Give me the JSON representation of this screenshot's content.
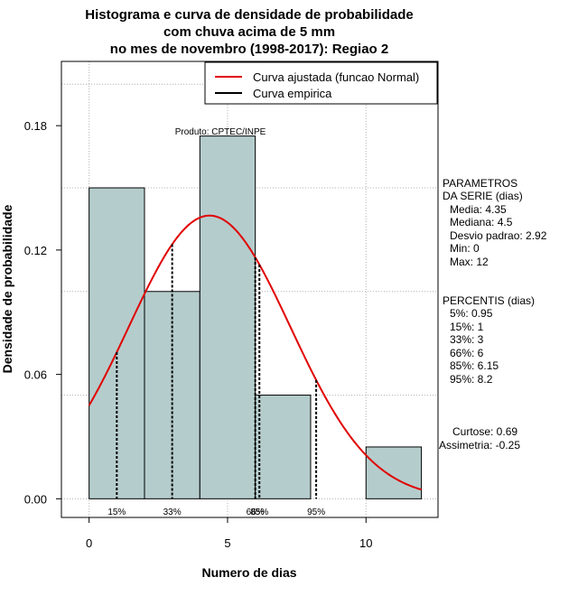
{
  "chart_data": {
    "type": "histogram",
    "title_lines": [
      "Histograma e curva de densidade de probabilidade",
      "com chuva acima de 5 mm",
      "no mes de novembro (1998-2017): Regiao 2"
    ],
    "xlabel": "Numero de dias",
    "ylabel": "Densidade de probabilidade",
    "xlim": [
      -1,
      12.6
    ],
    "ylim": [
      -0.009,
      0.211
    ],
    "xticks": [
      0,
      5,
      10
    ],
    "yticks": [
      0.0,
      0.06,
      0.12,
      0.18
    ],
    "ytick_labels": [
      "0.00",
      "0.06",
      "0.12",
      "0.18"
    ],
    "bins": [
      {
        "x0": 0,
        "x1": 2,
        "density": 0.15
      },
      {
        "x0": 2,
        "x1": 4,
        "density": 0.1
      },
      {
        "x0": 4,
        "x1": 6,
        "density": 0.175
      },
      {
        "x0": 6,
        "x1": 8,
        "density": 0.05
      },
      {
        "x0": 8,
        "x1": 10,
        "density": 0.0
      },
      {
        "x0": 10,
        "x1": 12,
        "density": 0.025
      }
    ],
    "bar_color": "#b5cccc",
    "normal_fit": {
      "mean": 4.35,
      "sd": 2.92,
      "x_from": 0,
      "x_to": 12,
      "color": "#e00000"
    },
    "percentile_lines": [
      {
        "value": 1,
        "label": "15%"
      },
      {
        "value": 3,
        "label": "33%"
      },
      {
        "value": 6,
        "label": "66%"
      },
      {
        "value": 6.15,
        "label": "85%"
      },
      {
        "value": 8.2,
        "label": "95%"
      }
    ],
    "legend": [
      {
        "label": "Curva ajustada (funcao Normal)",
        "color": "#e00000"
      },
      {
        "label": "Curva empirica",
        "color": "#000000"
      }
    ],
    "legend_position": "top-right",
    "product_label": "Produto: CPTEC/INPE",
    "grid": true
  },
  "side_panel": {
    "params_title": [
      "PARAMETROS",
      "DA SERIE (dias)"
    ],
    "params": [
      "Media: 4.35",
      "Mediana: 4.5",
      "Desvio padrao: 2.92",
      "Min: 0",
      "Max: 12"
    ],
    "percentis_title": "PERCENTIS (dias)",
    "percentis": [
      "5%: 0.95",
      "15%: 1",
      "33%: 3",
      "66%: 6",
      "85%: 6.15",
      "95%: 8.2"
    ],
    "curtose": "Curtose: 0.69",
    "assimetria": "Assimetria: -0.25"
  }
}
